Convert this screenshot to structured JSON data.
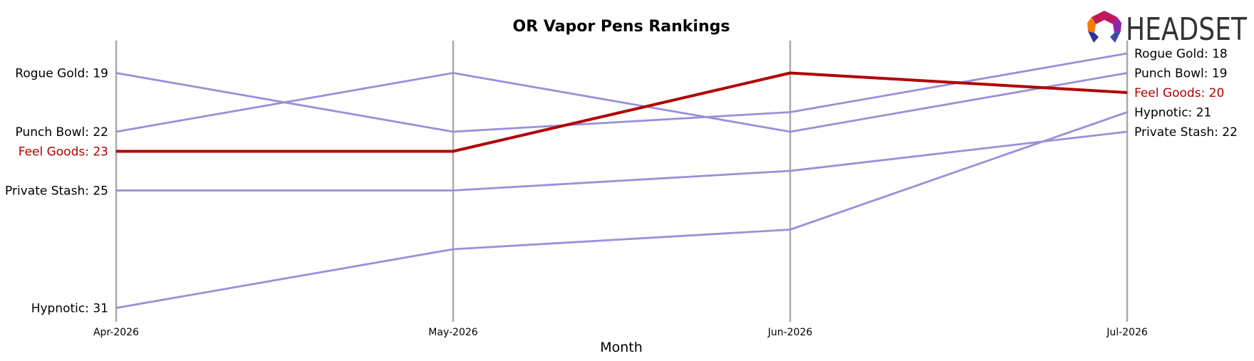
{
  "chart_data": {
    "type": "line",
    "title": "OR Vapor Pens Rankings",
    "xlabel": "Month",
    "ylabel": "",
    "categories": [
      "Apr-2026",
      "May-2026",
      "Jun-2026",
      "Jul-2026"
    ],
    "y_inverted": true,
    "ylim": [
      17,
      32
    ],
    "grid": "vertical lines at each month",
    "legend": "none; end labels on left and right of lines",
    "series": [
      {
        "name": "Rogue Gold",
        "values": [
          19,
          22,
          21,
          18
        ],
        "color": "#9b8fd9",
        "highlight": false
      },
      {
        "name": "Punch Bowl",
        "values": [
          22,
          19,
          22,
          19
        ],
        "color": "#9b8fd9",
        "highlight": false
      },
      {
        "name": "Feel Goods",
        "values": [
          23,
          23,
          19,
          20
        ],
        "color": "#b00000",
        "highlight": true
      },
      {
        "name": "Private Stash",
        "values": [
          25,
          25,
          24,
          22
        ],
        "color": "#9b8fd9",
        "highlight": false
      },
      {
        "name": "Hypnotic",
        "values": [
          31,
          28,
          27,
          21
        ],
        "color": "#9b8fd9",
        "highlight": false
      }
    ]
  },
  "logo": {
    "text": "HEADSET"
  }
}
